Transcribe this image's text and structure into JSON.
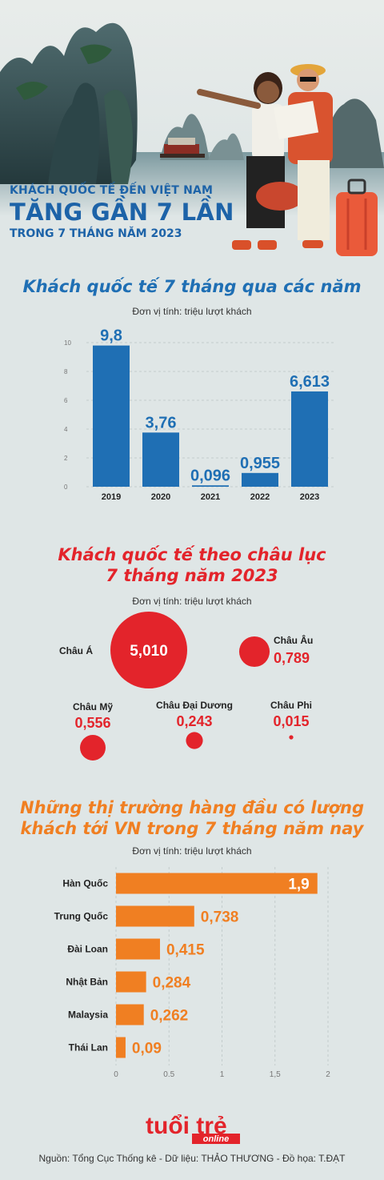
{
  "hero": {
    "line1": "KHÁCH QUỐC TẾ ĐẾN VIỆT NAM",
    "line2": "TĂNG GẦN 7 LẦN",
    "line3": "TRONG 7 THÁNG NĂM 2023"
  },
  "section1": {
    "title": "Khách quốc tế 7 tháng qua các năm",
    "unit": "Đơn vị tính: triệu lượt khách"
  },
  "section2": {
    "title_line1": "Khách quốc tế theo châu lục",
    "title_line2": "7 tháng năm 2023",
    "unit": "Đơn vị tính: triệu lượt khách"
  },
  "section3": {
    "title_line1": "Những thị trường hàng đầu có lượng",
    "title_line2": "khách tới VN trong 7 tháng năm nay",
    "unit": "Đơn vị tính: triệu lượt khách"
  },
  "footer": {
    "logo_top": "tuổi trẻ",
    "logo_sub": "online",
    "source": "Nguồn: Tổng Cục Thống kê - Dữ liệu: THẢO THƯƠNG - Đồ họa: T.ĐẠT"
  },
  "colors": {
    "blue": "#1f6fb4",
    "red": "#e3242b",
    "orange": "#f07f22"
  },
  "chart_data": [
    {
      "type": "bar",
      "categories": [
        "2019",
        "2020",
        "2021",
        "2022",
        "2023"
      ],
      "values": [
        9.8,
        3.76,
        0.096,
        0.955,
        6.613
      ],
      "labels": [
        "9,8",
        "3,76",
        "0,096",
        "0,955",
        "6,613"
      ],
      "yticks": [
        "0",
        "2",
        "4",
        "6",
        "8",
        "10"
      ],
      "ylim": [
        0,
        10
      ]
    },
    {
      "type": "bubble",
      "categories": [
        "Châu Á",
        "Châu Âu",
        "Châu Mỹ",
        "Châu Đại Dương",
        "Châu Phi"
      ],
      "values": [
        5.01,
        0.789,
        0.556,
        0.243,
        0.015
      ],
      "labels": [
        "5,010",
        "0,789",
        "0,556",
        "0,243",
        "0,015"
      ]
    },
    {
      "type": "bar",
      "orientation": "horizontal",
      "categories": [
        "Hàn Quốc",
        "Trung Quốc",
        "Đài Loan",
        "Nhật Bản",
        "Malaysia",
        "Thái Lan"
      ],
      "values": [
        1.9,
        0.738,
        0.415,
        0.284,
        0.262,
        0.09
      ],
      "labels": [
        "1,9",
        "0,738",
        "0,415",
        "0,284",
        "0,262",
        "0,09"
      ],
      "xticks": [
        "0",
        "0.5",
        "1",
        "1,5",
        "2"
      ],
      "xlim": [
        0,
        2
      ]
    }
  ]
}
